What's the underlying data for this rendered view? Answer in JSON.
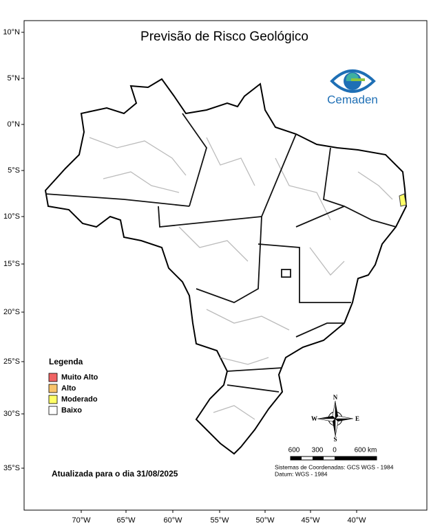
{
  "title": "Previsão de Risco Geológico",
  "logo": {
    "name": "Cemaden"
  },
  "graticule": {
    "latitudes": [
      "10°N",
      "5°N",
      "0°N",
      "5°S",
      "10°S",
      "15°S",
      "20°S",
      "25°S",
      "30°S",
      "35°S"
    ],
    "longitudes": [
      "70°W",
      "65°W",
      "60°W",
      "55°W",
      "50°W",
      "45°W",
      "40°W"
    ]
  },
  "legend": {
    "title": "Legenda",
    "items": [
      {
        "label": "Muito Alto",
        "color": "#f06464"
      },
      {
        "label": "Alto",
        "color": "#f9c46b"
      },
      {
        "label": "Moderado",
        "color": "#ffff66"
      },
      {
        "label": "Baixo",
        "color": "#ffffff"
      }
    ]
  },
  "compass": {
    "north": "N",
    "south": "S",
    "east": "E",
    "west": "W"
  },
  "scale_bar": {
    "labels": [
      "600",
      "300",
      "0",
      "600 km"
    ]
  },
  "credits": {
    "lines": [
      "Sistemas de Coordenadas: GCS WGS - 1984",
      "Datum: WGS - 1984"
    ]
  },
  "updated": "Atualizada para o dia 31/08/2025"
}
